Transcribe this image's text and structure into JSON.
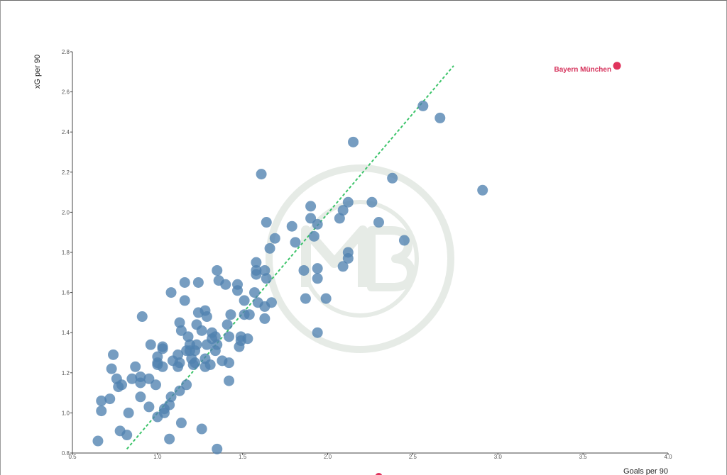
{
  "chart_data": {
    "type": "scatter",
    "title": "",
    "xlabel": "Goals per 90",
    "ylabel": "xG per 90",
    "xlim": [
      0.5,
      4.0
    ],
    "ylim": [
      0.8,
      2.8
    ],
    "xticks": [
      "0.5",
      "1.0",
      "1.5",
      "2.0",
      "2.5",
      "3.0",
      "3.5",
      "4.0"
    ],
    "yticks": [
      "0.8",
      "1.0",
      "1.2",
      "1.4",
      "1.6",
      "1.8",
      "2.0",
      "2.2",
      "2.4",
      "2.6",
      "2.8"
    ],
    "grid": false,
    "colors": {
      "points": "#4f81b0",
      "highlight": "#e0335c",
      "trendline": "#3cc46a",
      "axis": "#444444",
      "watermark": "#e6ebe6"
    },
    "trendline": {
      "x": [
        0.82,
        2.74
      ],
      "y": [
        0.82,
        2.73
      ]
    },
    "highlight": {
      "x": 3.7,
      "y": 2.73,
      "label": "Bayern München"
    },
    "offchart_point": {
      "x": 2.3,
      "y": 0.7
    },
    "points": [
      [
        0.65,
        0.86
      ],
      [
        0.67,
        1.01
      ],
      [
        0.67,
        1.06
      ],
      [
        0.72,
        1.07
      ],
      [
        0.73,
        1.22
      ],
      [
        0.74,
        1.29
      ],
      [
        0.76,
        1.17
      ],
      [
        0.77,
        1.13
      ],
      [
        0.78,
        0.91
      ],
      [
        0.79,
        1.14
      ],
      [
        0.82,
        0.89
      ],
      [
        0.83,
        1.0
      ],
      [
        0.85,
        1.17
      ],
      [
        0.87,
        1.23
      ],
      [
        0.9,
        1.08
      ],
      [
        0.9,
        1.18
      ],
      [
        0.9,
        1.15
      ],
      [
        0.91,
        1.48
      ],
      [
        0.95,
        1.03
      ],
      [
        0.95,
        1.17
      ],
      [
        0.96,
        1.34
      ],
      [
        0.99,
        1.14
      ],
      [
        1.0,
        1.24
      ],
      [
        1.0,
        1.25
      ],
      [
        1.0,
        1.28
      ],
      [
        1.0,
        0.98
      ],
      [
        1.03,
        1.33
      ],
      [
        1.03,
        1.32
      ],
      [
        1.03,
        1.23
      ],
      [
        1.04,
        1.0
      ],
      [
        1.04,
        1.02
      ],
      [
        1.07,
        0.87
      ],
      [
        1.07,
        1.04
      ],
      [
        1.08,
        1.08
      ],
      [
        1.08,
        1.6
      ],
      [
        1.09,
        1.26
      ],
      [
        1.12,
        1.29
      ],
      [
        1.12,
        1.23
      ],
      [
        1.13,
        1.11
      ],
      [
        1.13,
        1.25
      ],
      [
        1.13,
        1.45
      ],
      [
        1.14,
        0.95
      ],
      [
        1.14,
        1.41
      ],
      [
        1.16,
        1.65
      ],
      [
        1.16,
        1.56
      ],
      [
        1.17,
        1.31
      ],
      [
        1.17,
        1.14
      ],
      [
        1.18,
        1.38
      ],
      [
        1.19,
        1.34
      ],
      [
        1.19,
        1.31
      ],
      [
        1.2,
        1.27
      ],
      [
        1.21,
        1.24
      ],
      [
        1.22,
        1.25
      ],
      [
        1.22,
        1.31
      ],
      [
        1.23,
        1.44
      ],
      [
        1.23,
        1.34
      ],
      [
        1.24,
        1.5
      ],
      [
        1.24,
        1.65
      ],
      [
        1.26,
        0.92
      ],
      [
        1.26,
        1.41
      ],
      [
        1.28,
        1.23
      ],
      [
        1.28,
        1.27
      ],
      [
        1.28,
        1.51
      ],
      [
        1.29,
        1.34
      ],
      [
        1.29,
        1.48
      ],
      [
        1.31,
        1.24
      ],
      [
        1.32,
        1.37
      ],
      [
        1.32,
        1.4
      ],
      [
        1.34,
        1.31
      ],
      [
        1.34,
        1.38
      ],
      [
        1.35,
        0.82
      ],
      [
        1.35,
        1.34
      ],
      [
        1.35,
        1.71
      ],
      [
        1.36,
        1.66
      ],
      [
        1.38,
        1.26
      ],
      [
        1.4,
        1.64
      ],
      [
        1.41,
        1.44
      ],
      [
        1.42,
        1.38
      ],
      [
        1.42,
        1.25
      ],
      [
        1.42,
        1.16
      ],
      [
        1.43,
        1.49
      ],
      [
        1.47,
        1.61
      ],
      [
        1.47,
        1.64
      ],
      [
        1.48,
        1.33
      ],
      [
        1.49,
        1.36
      ],
      [
        1.49,
        1.38
      ],
      [
        1.51,
        1.56
      ],
      [
        1.51,
        1.49
      ],
      [
        1.53,
        1.37
      ],
      [
        1.54,
        1.49
      ],
      [
        1.57,
        1.6
      ],
      [
        1.58,
        1.71
      ],
      [
        1.58,
        1.75
      ],
      [
        1.58,
        1.69
      ],
      [
        1.59,
        1.55
      ],
      [
        1.61,
        2.19
      ],
      [
        1.63,
        1.71
      ],
      [
        1.63,
        1.53
      ],
      [
        1.63,
        1.47
      ],
      [
        1.64,
        1.95
      ],
      [
        1.64,
        1.67
      ],
      [
        1.66,
        1.82
      ],
      [
        1.67,
        1.55
      ],
      [
        1.69,
        1.87
      ],
      [
        1.79,
        1.93
      ],
      [
        1.81,
        1.85
      ],
      [
        1.86,
        1.71
      ],
      [
        1.87,
        1.57
      ],
      [
        1.9,
        2.03
      ],
      [
        1.9,
        1.97
      ],
      [
        1.92,
        1.88
      ],
      [
        1.94,
        1.94
      ],
      [
        1.94,
        1.72
      ],
      [
        1.94,
        1.67
      ],
      [
        1.94,
        1.4
      ],
      [
        1.99,
        1.57
      ],
      [
        2.07,
        1.97
      ],
      [
        2.09,
        2.01
      ],
      [
        2.09,
        1.73
      ],
      [
        2.12,
        2.05
      ],
      [
        2.12,
        1.8
      ],
      [
        2.12,
        1.77
      ],
      [
        2.15,
        2.35
      ],
      [
        2.26,
        2.05
      ],
      [
        2.3,
        1.95
      ],
      [
        2.38,
        2.17
      ],
      [
        2.45,
        1.86
      ],
      [
        2.56,
        2.53
      ],
      [
        2.66,
        2.47
      ],
      [
        2.91,
        2.11
      ]
    ]
  }
}
